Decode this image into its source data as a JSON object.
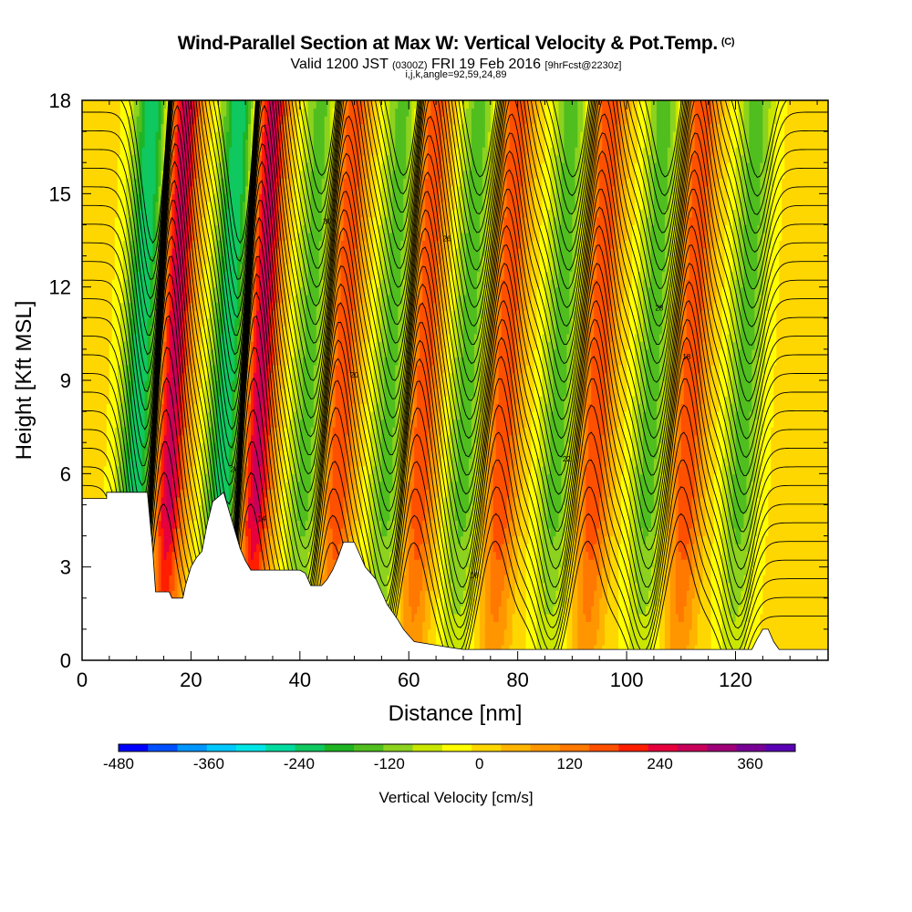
{
  "title": "Wind-Parallel Section at Max W: Vertical Velocity & Pot.Temp.",
  "title_mark": "(C)",
  "subtitle_valid": "Valid 1200 JST",
  "subtitle_utc": "(0300Z)",
  "subtitle_date": "FRI 19 Feb 2016",
  "subtitle_fcst": "[9hrFcst@2230z]",
  "subtitle_indices": "i,j,k,angle=92,59,24,89",
  "chart_data": {
    "type": "heatmap",
    "xlabel": "Distance [nm]",
    "ylabel": "Height [Kft MSL]",
    "xlim": [
      0,
      137
    ],
    "ylim": [
      0,
      18
    ],
    "x_ticks": [
      "0",
      "20",
      "40",
      "60",
      "80",
      "100",
      "120"
    ],
    "y_ticks": [
      "0",
      "3",
      "6",
      "9",
      "12",
      "15",
      "18"
    ],
    "colorbar": {
      "title": "Vertical Velocity [cm/s]",
      "range": [
        -480,
        420
      ],
      "step": 40,
      "tick_labels": [
        "-480",
        "-360",
        "-240",
        "-120",
        "0",
        "120",
        "240",
        "360"
      ],
      "colors": [
        "#0000ff",
        "#0050ff",
        "#0096ff",
        "#00c8ff",
        "#00e6e6",
        "#00dca0",
        "#10c860",
        "#1eb424",
        "#50be1e",
        "#8cd21e",
        "#c8e600",
        "#ffff00",
        "#ffd700",
        "#ffb400",
        "#ff9600",
        "#ff7800",
        "#ff5000",
        "#ff1e00",
        "#e6003c",
        "#c8005a",
        "#a00078",
        "#780096",
        "#5a00b4"
      ]
    },
    "updraft_bands_nm": [
      17,
      33,
      48,
      63,
      78,
      95,
      112
    ],
    "downdraft_bands_nm": [
      11,
      27,
      42,
      57,
      71,
      88,
      105,
      122
    ],
    "contour_labels": [
      "14",
      "16",
      "18",
      "20",
      "22",
      "24",
      "26",
      "28",
      "30"
    ],
    "terrain_kft": [
      [
        0,
        5.2
      ],
      [
        4.5,
        5.2
      ],
      [
        4.5,
        5.4
      ],
      [
        12,
        5.4
      ],
      [
        13,
        3.5
      ],
      [
        13.5,
        2.2
      ],
      [
        16,
        2.2
      ],
      [
        16.5,
        2.0
      ],
      [
        18.5,
        2.0
      ],
      [
        19,
        2.4
      ],
      [
        20,
        3.0
      ],
      [
        21,
        3.3
      ],
      [
        22,
        3.5
      ],
      [
        23,
        4.4
      ],
      [
        24,
        5.1
      ],
      [
        26,
        5.4
      ],
      [
        27,
        4.8
      ],
      [
        28,
        4.2
      ],
      [
        29,
        3.6
      ],
      [
        30,
        3.2
      ],
      [
        31,
        2.9
      ],
      [
        33,
        2.9
      ],
      [
        34,
        2.9
      ],
      [
        36,
        2.9
      ],
      [
        38,
        2.9
      ],
      [
        40,
        2.9
      ],
      [
        41,
        2.8
      ],
      [
        42,
        2.4
      ],
      [
        44,
        2.4
      ],
      [
        45,
        2.6
      ],
      [
        46,
        2.9
      ],
      [
        47,
        3.3
      ],
      [
        48,
        3.8
      ],
      [
        50,
        3.8
      ],
      [
        51,
        3.4
      ],
      [
        52,
        3.0
      ],
      [
        54,
        2.6
      ],
      [
        55,
        2.2
      ],
      [
        56,
        1.8
      ],
      [
        58,
        1.3
      ],
      [
        59,
        1.0
      ],
      [
        60,
        0.8
      ],
      [
        61,
        0.6
      ],
      [
        68,
        0.4
      ],
      [
        70,
        0.35
      ],
      [
        123,
        0.35
      ],
      [
        124,
        0.7
      ],
      [
        125,
        1.0
      ],
      [
        126,
        1.0
      ],
      [
        127,
        0.6
      ],
      [
        128,
        0.35
      ],
      [
        137,
        0.35
      ]
    ]
  }
}
